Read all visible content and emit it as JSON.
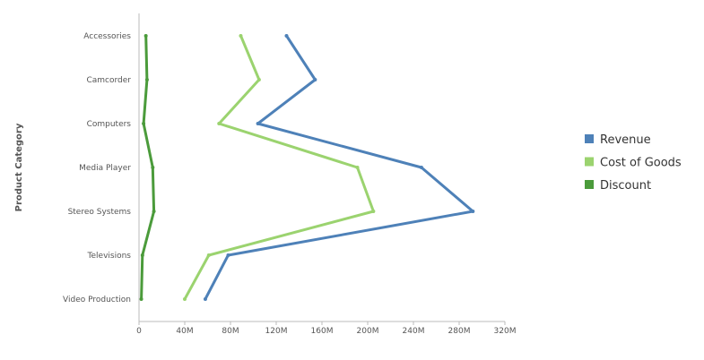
{
  "chart_data": {
    "type": "line",
    "orientation": "horizontal",
    "categories": [
      "Accessories",
      "Camcorder",
      "Computers",
      "Media Player",
      "Stereo Systems",
      "Televisions",
      "Video Production"
    ],
    "series": [
      {
        "name": "Revenue",
        "color": "#4e81b8",
        "values": [
          129,
          154,
          104,
          247,
          292,
          78,
          58
        ]
      },
      {
        "name": "Cost of Goods",
        "color": "#9bd36f",
        "values": [
          89,
          105,
          70,
          191,
          205,
          61,
          40
        ]
      },
      {
        "name": "Discount",
        "color": "#4b9b3b",
        "values": [
          6,
          7,
          4,
          12,
          13,
          3,
          2
        ]
      }
    ],
    "xlabel": "",
    "ylabel": "Product Category",
    "xlim": [
      0,
      320
    ],
    "x_ticks": [
      0,
      40,
      80,
      120,
      160,
      200,
      240,
      280,
      320
    ],
    "x_tick_labels": [
      "0",
      "40M",
      "80M",
      "120M",
      "160M",
      "200M",
      "240M",
      "280M",
      "320M"
    ],
    "legend_position": "right",
    "grid": false
  }
}
